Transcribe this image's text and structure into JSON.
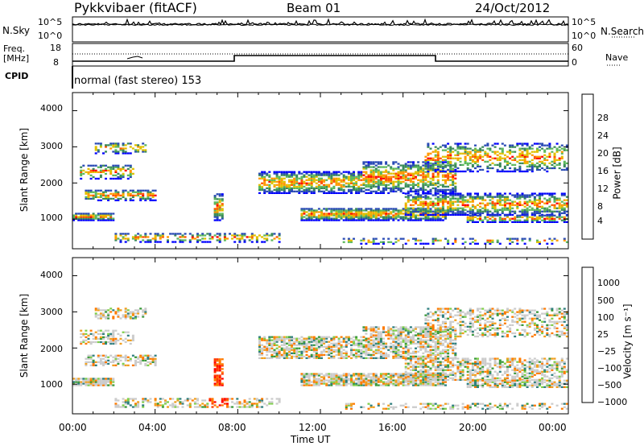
{
  "header": {
    "station": "Pykkvibaer (fitACF)",
    "beam": "Beam 01",
    "date": "24/Oct/2012",
    "mode_line": "normal (fast stereo) 153"
  },
  "noise_panel": {
    "left_label": "N.Sky",
    "right_label": "N.Search",
    "left_ticks": [
      "10^5",
      "10^0"
    ],
    "right_ticks": [
      "10^5",
      "10^0"
    ]
  },
  "freq_panel": {
    "left_label_line1": "Freq.",
    "left_label_line2": "[MHz]",
    "right_label": "Nave",
    "left_ticks": [
      "18",
      "8"
    ],
    "right_ticks": [
      "60",
      "0"
    ],
    "cpid_label": "CPID"
  },
  "colors": {
    "power": [
      "#0000ff",
      "#2a4bb5",
      "#3b8a5a",
      "#5cb85c",
      "#e0c000",
      "#ff9900",
      "#ff5500",
      "#ff0000"
    ],
    "velocity": [
      "#2450b8",
      "#2f7f7f",
      "#3a9a3a",
      "#7fcf4a",
      "#cccccc",
      "#f0a020",
      "#ff7a00",
      "#ff3a00",
      "#ff0000"
    ],
    "trace": "#000000"
  },
  "chart_data": [
    {
      "type": "heatmap",
      "panel": "power",
      "ylabel": "Slant Range [km]",
      "yticks": [
        "1000",
        "2000",
        "3000",
        "4000"
      ],
      "ylim": [
        180,
        4500
      ],
      "colorbar_label": "Power [dB]",
      "colorbar_ticks": [
        "4",
        "8",
        "12",
        "16",
        "20",
        "24",
        "28"
      ]
    },
    {
      "type": "heatmap",
      "panel": "velocity",
      "ylabel": "Slant Range [km]",
      "yticks": [
        "1000",
        "2000",
        "3000",
        "4000"
      ],
      "ylim": [
        180,
        4500
      ],
      "colorbar_label": "Velocity [m s⁻¹]",
      "colorbar_ticks": [
        "1000",
        "500",
        "100",
        "25",
        "−25",
        "−100",
        "−500",
        "−1000"
      ]
    }
  ],
  "xaxis": {
    "ticks": [
      "00:00",
      "04:00",
      "08:00",
      "12:00",
      "16:00",
      "20:00",
      "00:00"
    ],
    "label": "Time UT"
  }
}
